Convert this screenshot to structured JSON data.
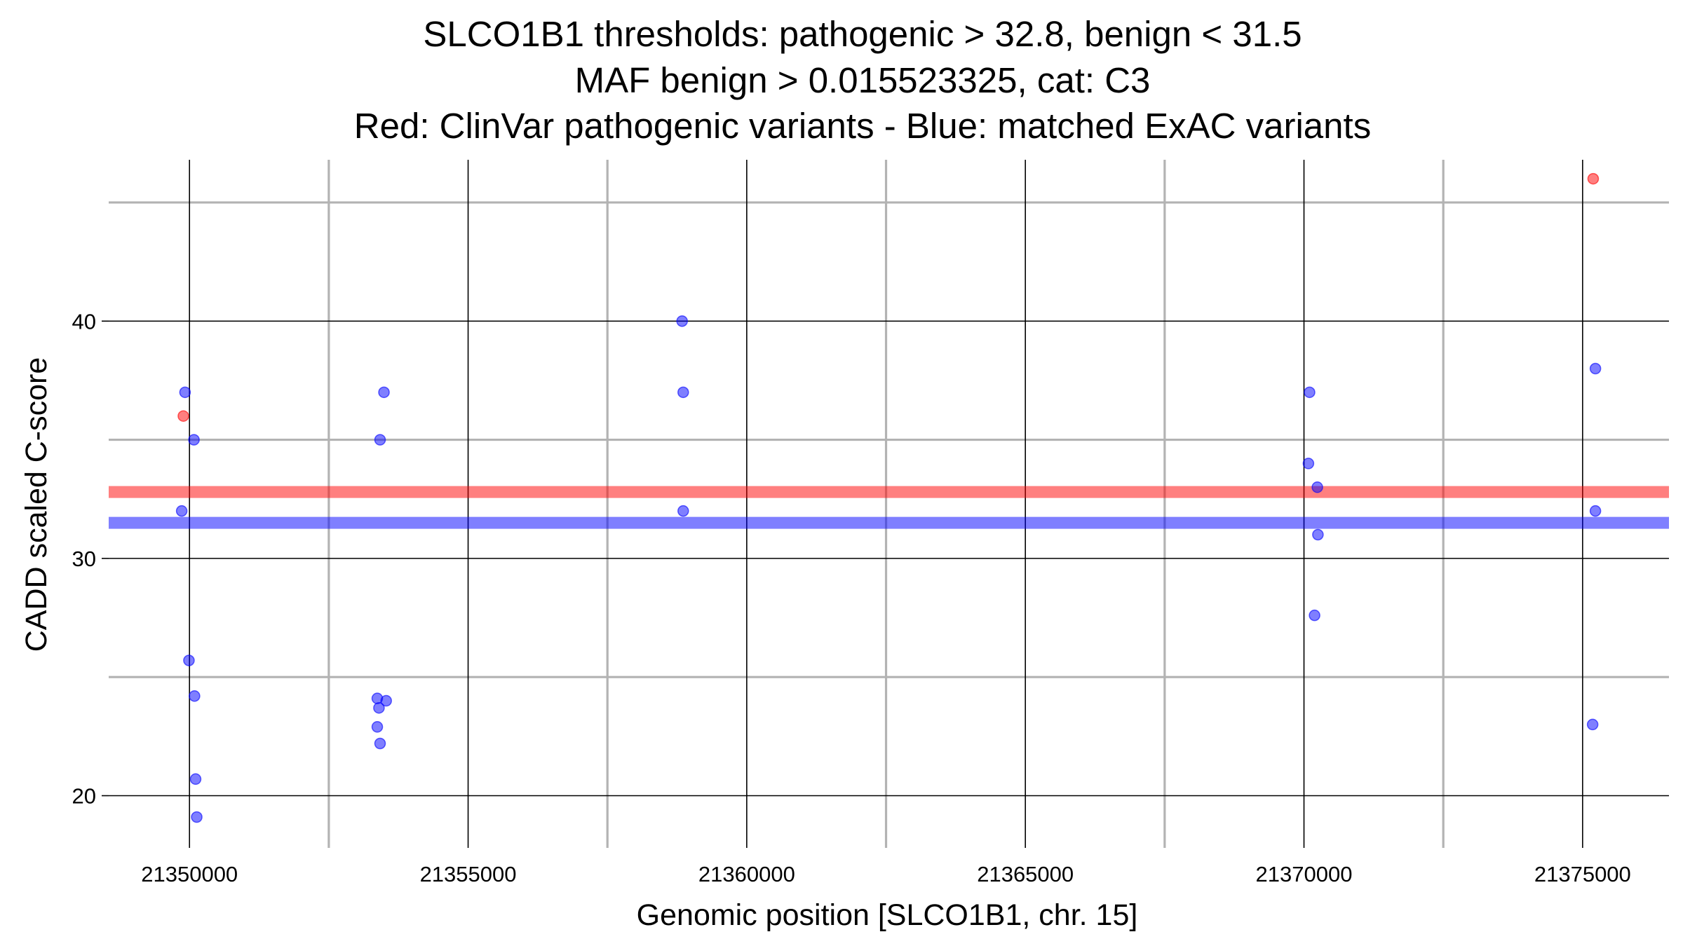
{
  "chart_data": {
    "type": "scatter",
    "title_lines": [
      "SLCO1B1 thresholds: pathogenic > 32.8, benign < 31.5",
      "MAF benign > 0.015523325, cat: C3",
      "Red: ClinVar pathogenic variants - Blue: matched ExAC variants"
    ],
    "xlabel": "Genomic position [SLCO1B1, chr. 15]",
    "ylabel": "CADD scaled C-score",
    "xlim": [
      21348550,
      21376550
    ],
    "ylim": [
      17.8,
      46.8
    ],
    "x_major_ticks": [
      21350000,
      21355000,
      21360000,
      21365000,
      21370000,
      21375000
    ],
    "x_minor_ticks": [
      21352500,
      21357500,
      21362500,
      21367500,
      21372500
    ],
    "x_tick_labels": [
      "21350000",
      "21355000",
      "21360000",
      "21365000",
      "21370000",
      "21375000"
    ],
    "y_major_ticks": [
      20,
      30,
      40
    ],
    "y_minor_ticks": [
      25,
      35,
      45
    ],
    "y_tick_labels": [
      "20",
      "30",
      "40"
    ],
    "grid": true,
    "thresholds": [
      {
        "name": "pathogenic",
        "value": 32.8,
        "color": "#ff0000"
      },
      {
        "name": "benign",
        "value": 31.5,
        "color": "#0000ff"
      }
    ],
    "series": [
      {
        "name": "ClinVar pathogenic variants",
        "color": "#ff0000",
        "points": [
          {
            "x": 21349890,
            "y": 36.0
          },
          {
            "x": 21375190,
            "y": 46.0
          }
        ]
      },
      {
        "name": "matched ExAC variants",
        "color": "#0000ff",
        "points": [
          {
            "x": 21349920,
            "y": 37.0
          },
          {
            "x": 21349860,
            "y": 32.0
          },
          {
            "x": 21350080,
            "y": 35.0
          },
          {
            "x": 21349990,
            "y": 25.7
          },
          {
            "x": 21350090,
            "y": 24.2
          },
          {
            "x": 21350110,
            "y": 20.7
          },
          {
            "x": 21350130,
            "y": 19.1
          },
          {
            "x": 21353490,
            "y": 37.0
          },
          {
            "x": 21353420,
            "y": 35.0
          },
          {
            "x": 21353370,
            "y": 24.1
          },
          {
            "x": 21353530,
            "y": 24.0
          },
          {
            "x": 21353400,
            "y": 23.7
          },
          {
            "x": 21353370,
            "y": 22.9
          },
          {
            "x": 21353420,
            "y": 22.2
          },
          {
            "x": 21358840,
            "y": 40.0
          },
          {
            "x": 21358860,
            "y": 37.0
          },
          {
            "x": 21358860,
            "y": 32.0
          },
          {
            "x": 21370100,
            "y": 37.0
          },
          {
            "x": 21370080,
            "y": 34.0
          },
          {
            "x": 21370240,
            "y": 33.0
          },
          {
            "x": 21370250,
            "y": 31.0
          },
          {
            "x": 21370190,
            "y": 27.6
          },
          {
            "x": 21375230,
            "y": 38.0
          },
          {
            "x": 21375230,
            "y": 32.0
          },
          {
            "x": 21375180,
            "y": 23.0
          }
        ]
      }
    ]
  }
}
